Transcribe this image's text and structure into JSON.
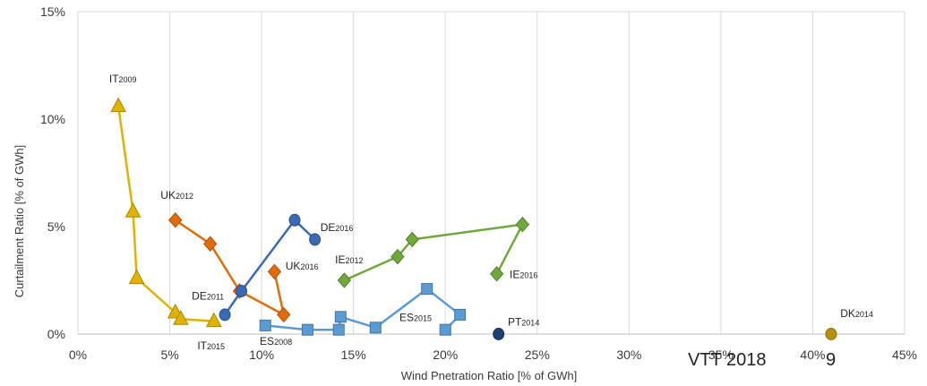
{
  "chart_data": {
    "type": "scatter",
    "xlabel": "Wind Pnetration Ratio [% of GWh]",
    "ylabel": "Curtailment Ratio [% of GWh]",
    "xlim": [
      0,
      45
    ],
    "ylim": [
      0,
      15
    ],
    "x_ticks": [
      "0%",
      "5%",
      "10%",
      "15%",
      "20%",
      "25%",
      "30%",
      "35%",
      "40%",
      "45%"
    ],
    "y_ticks": [
      "0%",
      "5%",
      "10%",
      "15%"
    ],
    "grid": "vertical",
    "watermark": "VTT 2018",
    "stray_text": "9",
    "series": [
      {
        "id": "IT",
        "color": "#e2b200",
        "marker": "triangle",
        "x": [
          2.2,
          3.0,
          3.2,
          5.3,
          5.6,
          7.4
        ],
        "y": [
          10.6,
          5.7,
          2.6,
          1.0,
          0.7,
          0.6
        ]
      },
      {
        "id": "UK",
        "color": "#e36c0a",
        "marker": "diamond",
        "x": [
          5.3,
          7.2,
          8.8,
          11.2,
          10.7
        ],
        "y": [
          5.3,
          4.2,
          2.0,
          0.9,
          2.9
        ]
      },
      {
        "id": "DE",
        "color": "#3a6ab5",
        "marker": "circle",
        "x": [
          8.0,
          8.9,
          11.8,
          12.9
        ],
        "y": [
          0.9,
          2.0,
          5.3,
          4.4
        ]
      },
      {
        "id": "ES",
        "color": "#5b9bd5",
        "marker": "square",
        "x": [
          10.2,
          12.5,
          14.2,
          14.3,
          16.2,
          19.0,
          20.8,
          20.0
        ],
        "y": [
          0.4,
          0.2,
          0.2,
          0.8,
          0.3,
          2.1,
          0.9,
          0.2
        ]
      },
      {
        "id": "IE",
        "color": "#70a83c",
        "marker": "diamond",
        "x": [
          14.5,
          17.4,
          18.2,
          24.2,
          22.8
        ],
        "y": [
          2.5,
          3.6,
          4.4,
          5.1,
          2.8
        ]
      },
      {
        "id": "PT",
        "color": "#1f3e74",
        "marker": "circle",
        "x": [
          22.9
        ],
        "y": [
          0.0
        ]
      },
      {
        "id": "DK",
        "color": "#b8920c",
        "marker": "circle",
        "x": [
          41.0
        ],
        "y": [
          0.0
        ]
      }
    ],
    "labels": [
      {
        "base": "IT",
        "sub": "2009",
        "x": 1.7,
        "y": 11.7
      },
      {
        "base": "IT",
        "sub": "2015",
        "x": 6.5,
        "y": -0.7
      },
      {
        "base": "UK",
        "sub": "2012",
        "x": 4.5,
        "y": 6.3
      },
      {
        "base": "UK",
        "sub": "2016",
        "x": 11.3,
        "y": 3.0
      },
      {
        "base": "DE",
        "sub": "2011",
        "x": 6.2,
        "y": 1.6
      },
      {
        "base": "DE",
        "sub": "2016",
        "x": 13.2,
        "y": 4.8
      },
      {
        "base": "ES",
        "sub": "2008",
        "x": 9.9,
        "y": -0.5
      },
      {
        "base": "ES",
        "sub": "2015",
        "x": 17.5,
        "y": 0.6
      },
      {
        "base": "IE",
        "sub": "2012",
        "x": 14.0,
        "y": 3.3
      },
      {
        "base": "IE",
        "sub": "2016",
        "x": 23.5,
        "y": 2.6
      },
      {
        "base": "PT",
        "sub": "2014",
        "x": 23.4,
        "y": 0.4
      },
      {
        "base": "DK",
        "sub": "2014",
        "x": 41.5,
        "y": 0.8
      }
    ]
  }
}
